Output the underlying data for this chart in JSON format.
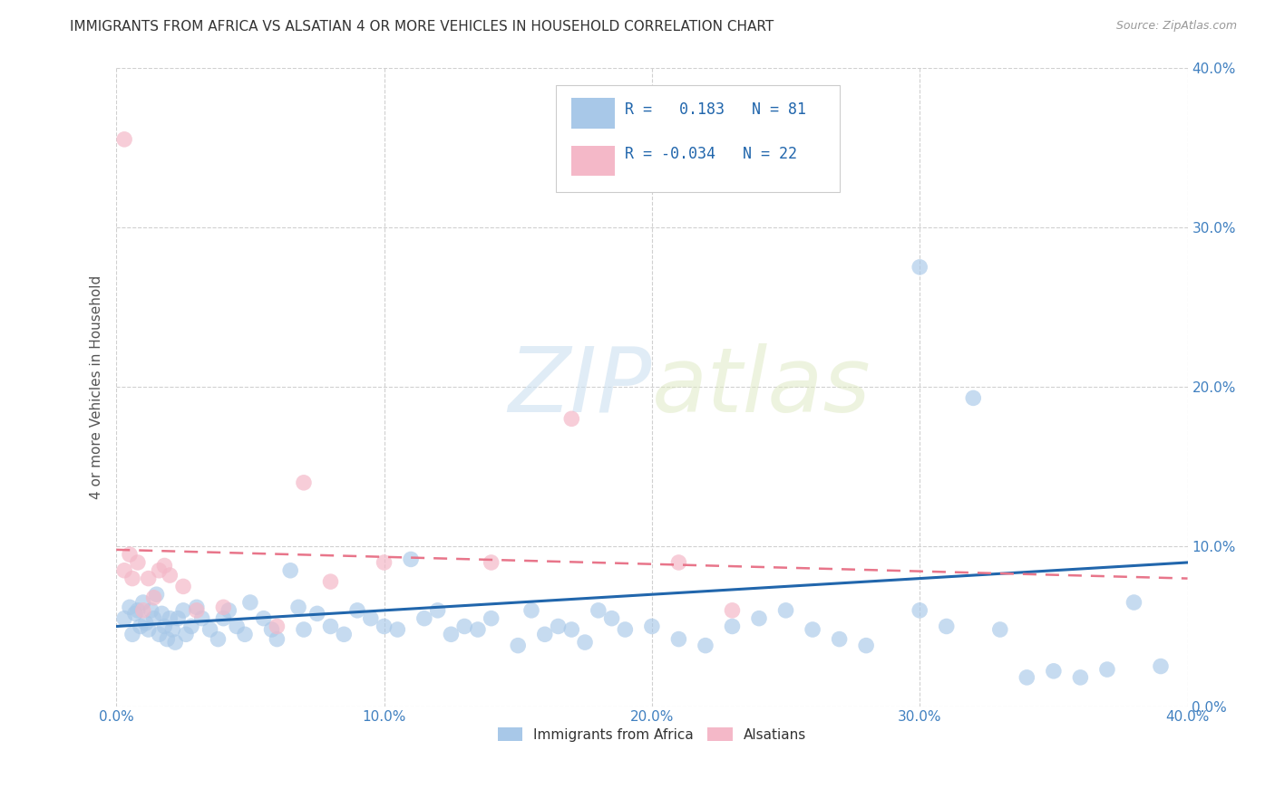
{
  "title": "IMMIGRANTS FROM AFRICA VS ALSATIAN 4 OR MORE VEHICLES IN HOUSEHOLD CORRELATION CHART",
  "source": "Source: ZipAtlas.com",
  "ylabel": "4 or more Vehicles in Household",
  "legend_label_blue": "Immigrants from Africa",
  "legend_label_pink": "Alsatians",
  "R_blue": 0.183,
  "N_blue": 81,
  "R_pink": -0.034,
  "N_pink": 22,
  "xmin": 0.0,
  "xmax": 0.4,
  "ymin": 0.0,
  "ymax": 0.4,
  "xticks": [
    0.0,
    0.1,
    0.2,
    0.3,
    0.4
  ],
  "yticks": [
    0.0,
    0.1,
    0.2,
    0.3,
    0.4
  ],
  "xtick_labels": [
    "0.0%",
    "10.0%",
    "20.0%",
    "30.0%",
    "40.0%"
  ],
  "ytick_labels": [
    "0.0%",
    "10.0%",
    "20.0%",
    "30.0%",
    "40.0%"
  ],
  "color_blue": "#a8c8e8",
  "color_pink": "#f4b8c8",
  "line_color_blue": "#2166ac",
  "line_color_pink": "#e8758a",
  "watermark_zip": "ZIP",
  "watermark_atlas": "atlas",
  "background_color": "#ffffff",
  "blue_x": [
    0.003,
    0.005,
    0.006,
    0.007,
    0.008,
    0.009,
    0.01,
    0.011,
    0.012,
    0.013,
    0.014,
    0.015,
    0.016,
    0.017,
    0.018,
    0.019,
    0.02,
    0.021,
    0.022,
    0.023,
    0.025,
    0.026,
    0.028,
    0.03,
    0.032,
    0.035,
    0.038,
    0.04,
    0.042,
    0.045,
    0.048,
    0.05,
    0.055,
    0.058,
    0.06,
    0.065,
    0.068,
    0.07,
    0.075,
    0.08,
    0.085,
    0.09,
    0.095,
    0.1,
    0.105,
    0.11,
    0.115,
    0.12,
    0.125,
    0.13,
    0.135,
    0.14,
    0.15,
    0.155,
    0.16,
    0.165,
    0.17,
    0.175,
    0.18,
    0.185,
    0.19,
    0.2,
    0.21,
    0.22,
    0.23,
    0.24,
    0.25,
    0.26,
    0.27,
    0.28,
    0.3,
    0.31,
    0.32,
    0.34,
    0.35,
    0.36,
    0.37,
    0.3,
    0.33,
    0.38,
    0.39
  ],
  "blue_y": [
    0.055,
    0.062,
    0.045,
    0.058,
    0.06,
    0.05,
    0.065,
    0.052,
    0.048,
    0.06,
    0.055,
    0.07,
    0.045,
    0.058,
    0.05,
    0.042,
    0.055,
    0.048,
    0.04,
    0.055,
    0.06,
    0.045,
    0.05,
    0.062,
    0.055,
    0.048,
    0.042,
    0.055,
    0.06,
    0.05,
    0.045,
    0.065,
    0.055,
    0.048,
    0.042,
    0.085,
    0.062,
    0.048,
    0.058,
    0.05,
    0.045,
    0.06,
    0.055,
    0.05,
    0.048,
    0.092,
    0.055,
    0.06,
    0.045,
    0.05,
    0.048,
    0.055,
    0.038,
    0.06,
    0.045,
    0.05,
    0.048,
    0.04,
    0.06,
    0.055,
    0.048,
    0.05,
    0.042,
    0.038,
    0.05,
    0.055,
    0.06,
    0.048,
    0.042,
    0.038,
    0.275,
    0.05,
    0.193,
    0.018,
    0.022,
    0.018,
    0.023,
    0.06,
    0.048,
    0.065,
    0.025
  ],
  "pink_x": [
    0.003,
    0.005,
    0.006,
    0.008,
    0.01,
    0.012,
    0.014,
    0.016,
    0.018,
    0.02,
    0.025,
    0.03,
    0.04,
    0.06,
    0.07,
    0.08,
    0.1,
    0.14,
    0.17,
    0.21,
    0.23,
    0.003
  ],
  "pink_y": [
    0.085,
    0.095,
    0.08,
    0.09,
    0.06,
    0.08,
    0.068,
    0.085,
    0.088,
    0.082,
    0.075,
    0.06,
    0.062,
    0.05,
    0.14,
    0.078,
    0.09,
    0.09,
    0.18,
    0.09,
    0.06,
    0.355
  ],
  "blue_line_x0": 0.0,
  "blue_line_x1": 0.4,
  "blue_line_y0": 0.05,
  "blue_line_y1": 0.09,
  "pink_line_x0": 0.0,
  "pink_line_x1": 0.4,
  "pink_line_y0": 0.098,
  "pink_line_y1": 0.08
}
